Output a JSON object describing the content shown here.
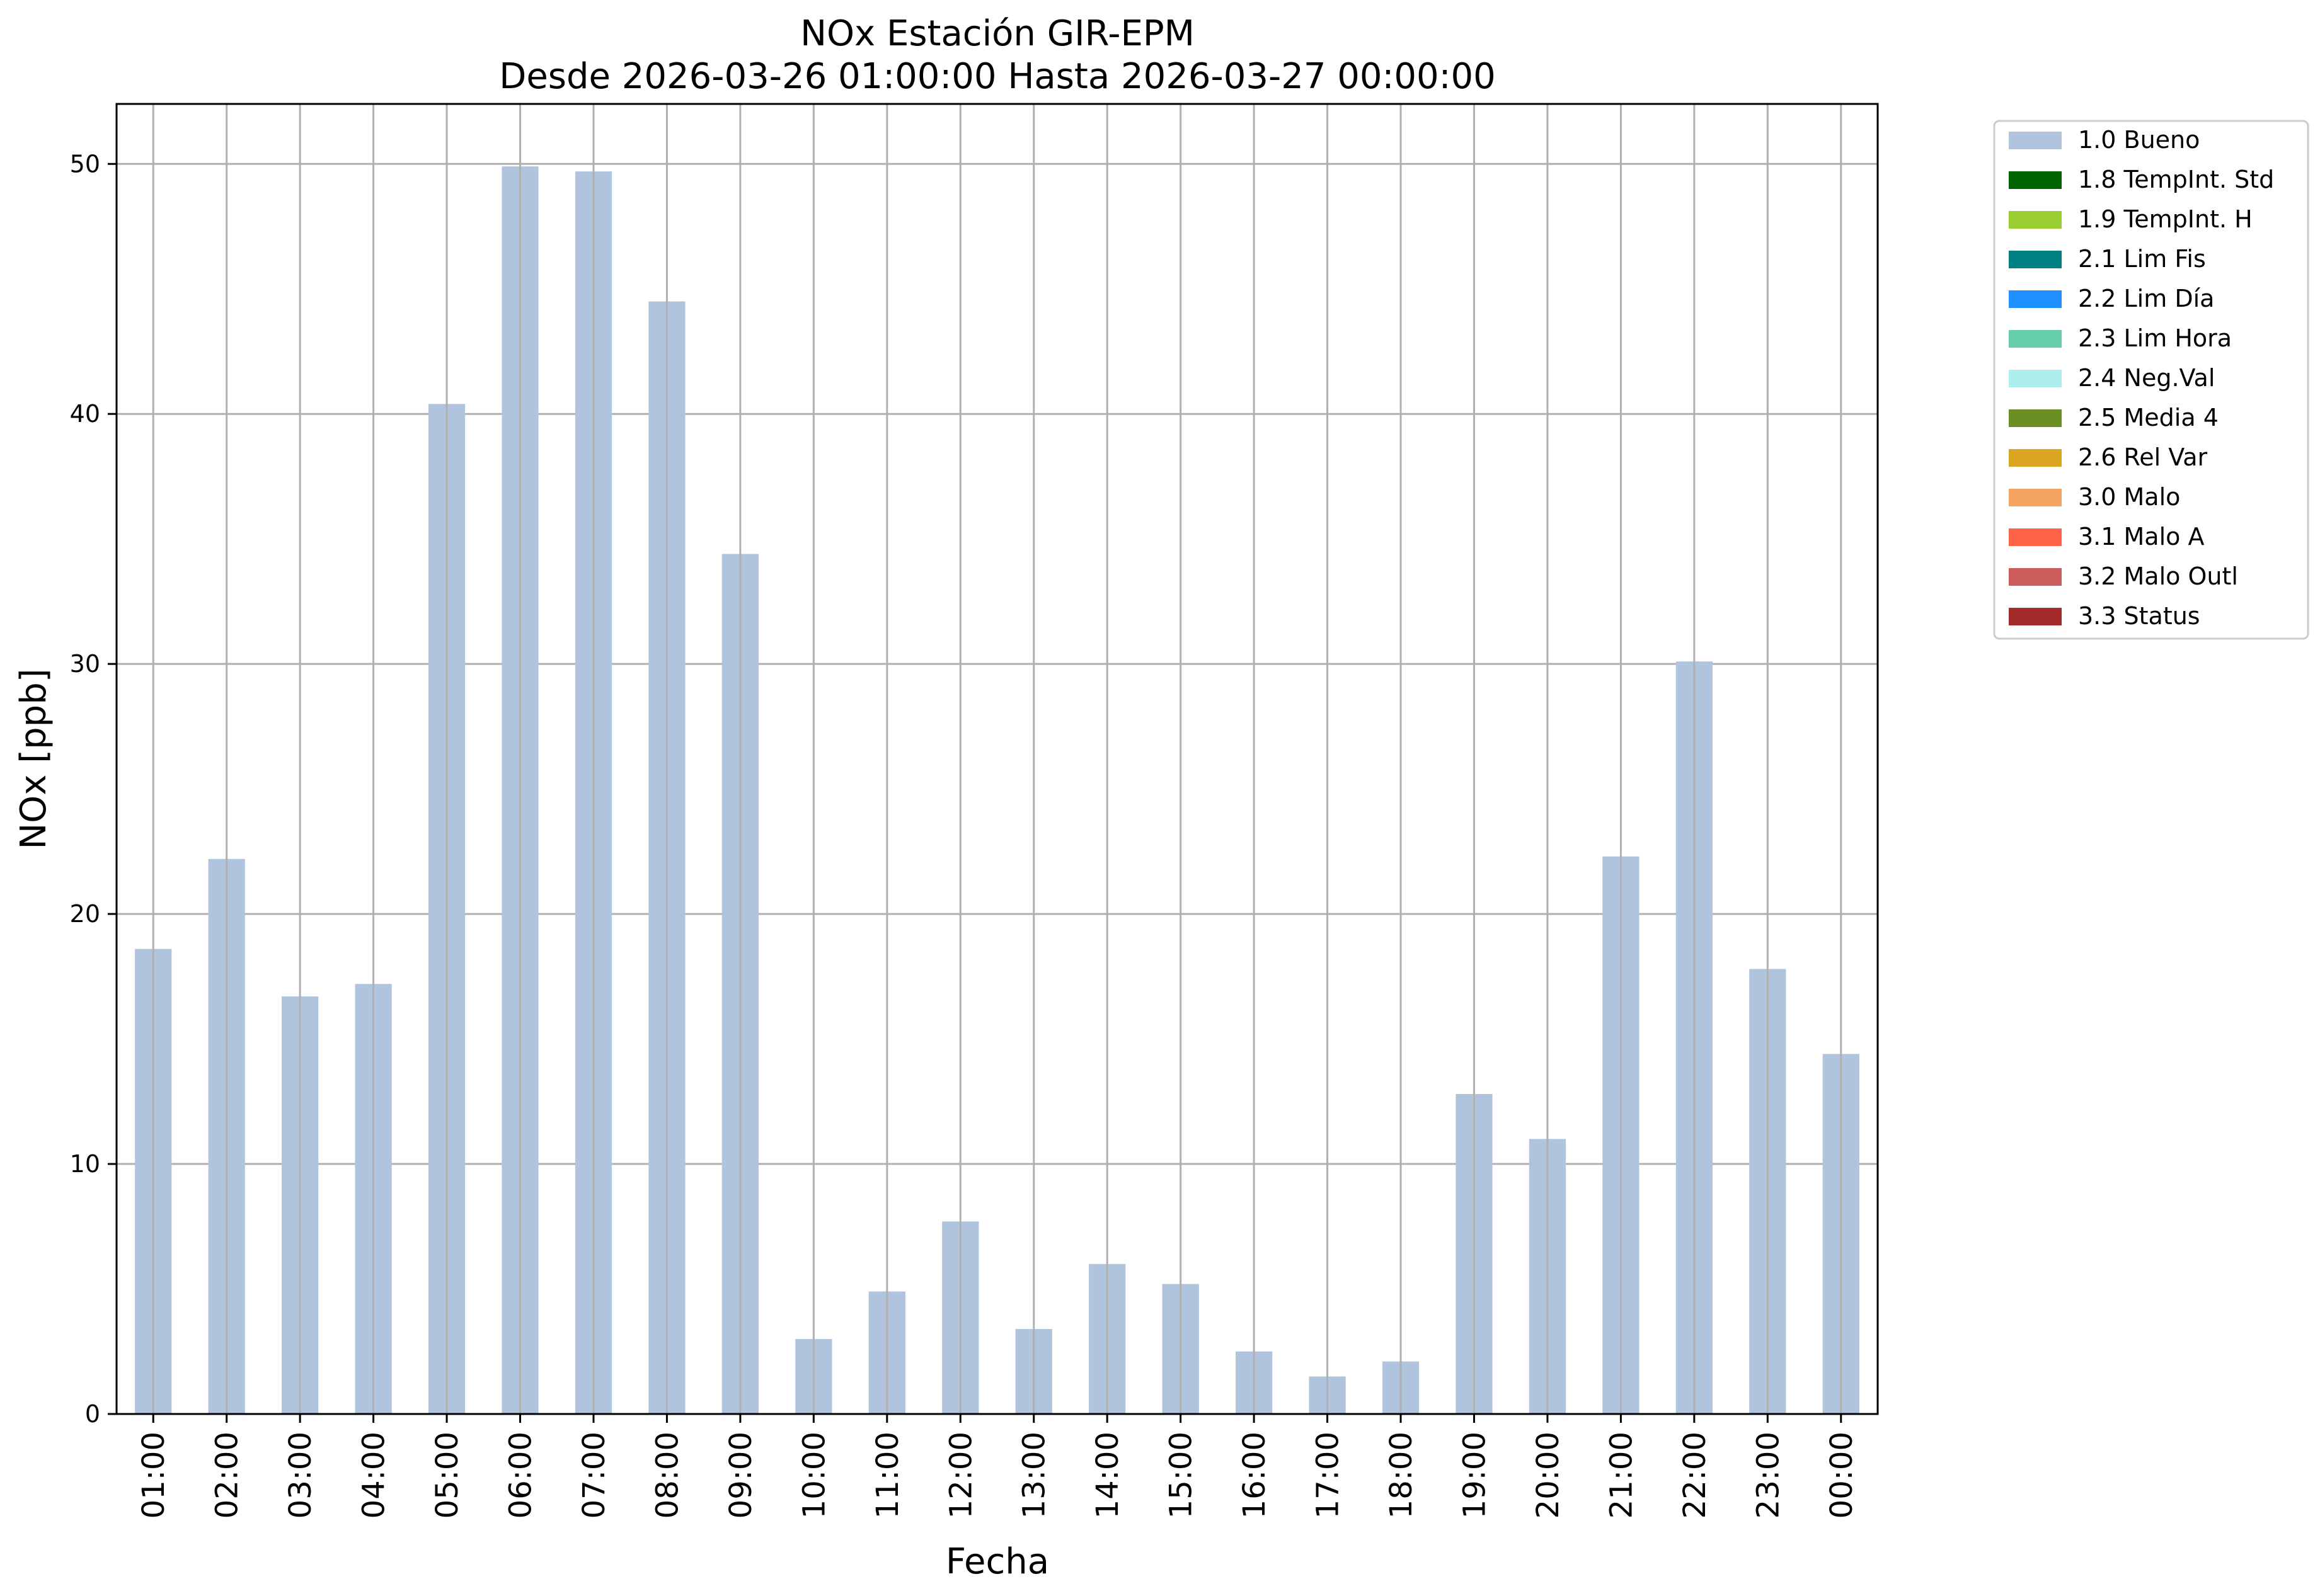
{
  "chart_data": {
    "type": "bar",
    "title": "NOx Estación GIR-EPM",
    "subtitle": "Desde 2026-03-26 01:00:00 Hasta 2026-03-27 00:00:00",
    "xlabel": "Fecha",
    "ylabel": "NOx [ppb]",
    "ylim": [
      0,
      52.4
    ],
    "yticks": [
      0,
      10,
      20,
      30,
      40,
      50
    ],
    "grid": true,
    "legend_position": "outside-right",
    "categories": [
      "01:00",
      "02:00",
      "03:00",
      "04:00",
      "05:00",
      "06:00",
      "07:00",
      "08:00",
      "09:00",
      "10:00",
      "11:00",
      "12:00",
      "13:00",
      "14:00",
      "15:00",
      "16:00",
      "17:00",
      "18:00",
      "19:00",
      "20:00",
      "21:00",
      "22:00",
      "23:00",
      "00:00"
    ],
    "series": [
      {
        "name": "1.0 Bueno",
        "color": "#b0c4de",
        "values": [
          18.6,
          22.2,
          16.7,
          17.2,
          40.4,
          49.9,
          49.7,
          44.5,
          34.4,
          3.0,
          4.9,
          7.7,
          3.4,
          6.0,
          5.2,
          2.5,
          1.5,
          2.1,
          12.8,
          11.0,
          22.3,
          30.1,
          17.8,
          14.4
        ]
      }
    ],
    "legend": [
      {
        "label": "1.0 Bueno",
        "color": "#b0c4de"
      },
      {
        "label": "1.8 TempInt. Std",
        "color": "#006400"
      },
      {
        "label": "1.9 TempInt. H",
        "color": "#9acd32"
      },
      {
        "label": "2.1 Lim Fis",
        "color": "#008080"
      },
      {
        "label": "2.2 Lim Día",
        "color": "#1e90ff"
      },
      {
        "label": "2.3 Lim Hora",
        "color": "#66cdaa"
      },
      {
        "label": "2.4 Neg.Val",
        "color": "#afeeee"
      },
      {
        "label": "2.5 Media 4",
        "color": "#6b8e23"
      },
      {
        "label": "2.6 Rel Var",
        "color": "#daa520"
      },
      {
        "label": "3.0 Malo",
        "color": "#f4a460"
      },
      {
        "label": "3.1 Malo A",
        "color": "#ff6347"
      },
      {
        "label": "3.2 Malo Outl",
        "color": "#cd5c5c"
      },
      {
        "label": "3.3 Status",
        "color": "#a52a2a"
      }
    ]
  }
}
